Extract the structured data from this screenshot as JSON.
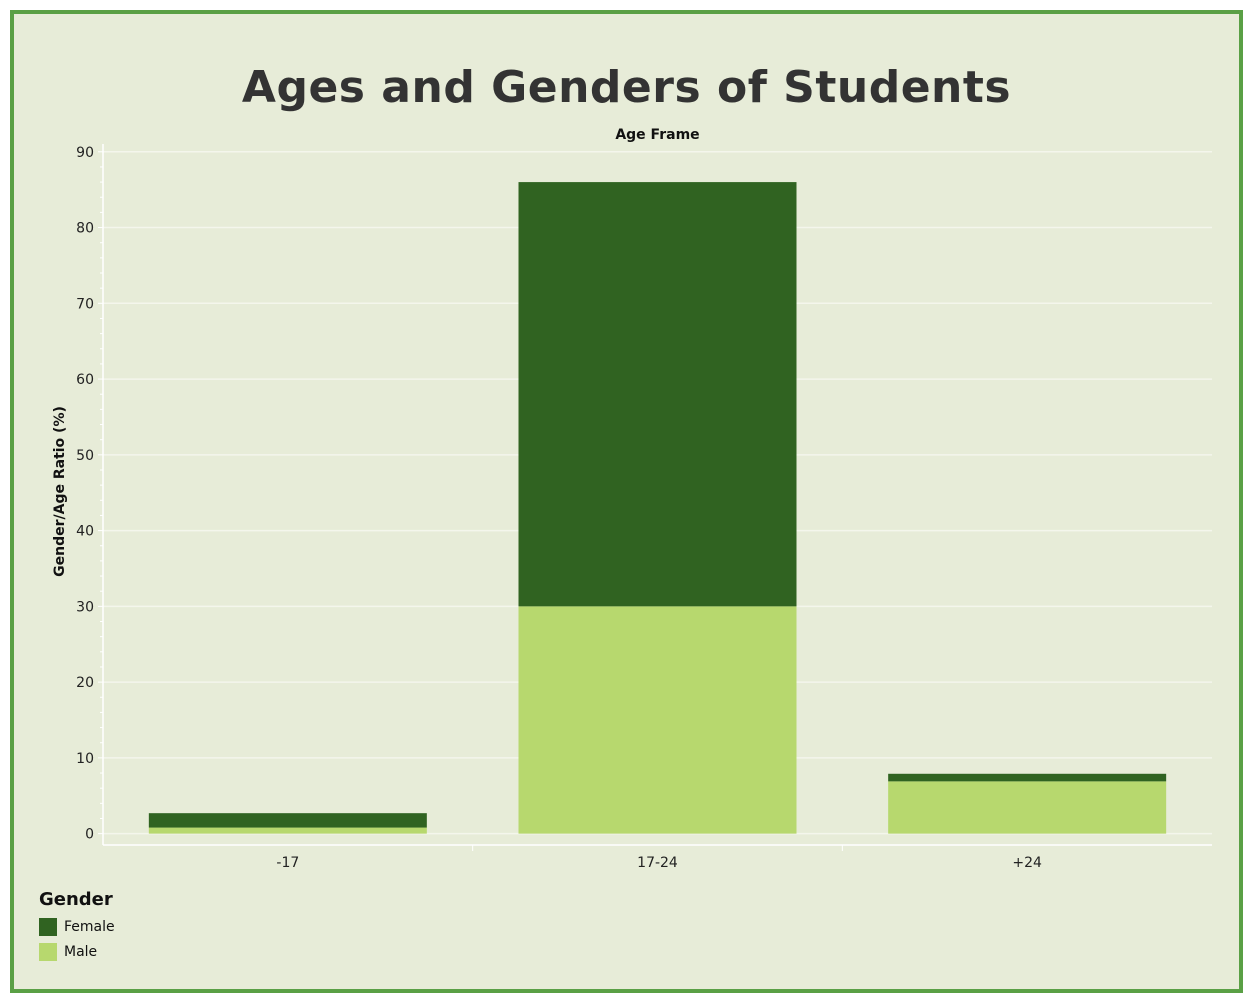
{
  "chart_data": {
    "type": "bar",
    "stacked": true,
    "title": "Ages and Genders of Students",
    "xlabel": "Age Frame",
    "ylabel": "Gender/Age Ratio (%)",
    "categories": [
      "-17",
      "17-24",
      "+24"
    ],
    "ylim": [
      -1.5,
      90.5
    ],
    "yticks": [
      0,
      10,
      20,
      30,
      40,
      50,
      60,
      70,
      80,
      90
    ],
    "grid": true,
    "legend_position": "bottom-left",
    "series": [
      {
        "name": "Male",
        "color": "#b7d86e",
        "values": [
          0.8,
          30,
          6.9
        ]
      },
      {
        "name": "Female",
        "color": "#306321",
        "values": [
          1.9,
          56,
          1.0
        ]
      }
    ]
  },
  "legend": {
    "title": "Gender",
    "items": [
      {
        "label": "Female",
        "color": "#306321"
      },
      {
        "label": "Male",
        "color": "#b7d86e"
      }
    ]
  }
}
